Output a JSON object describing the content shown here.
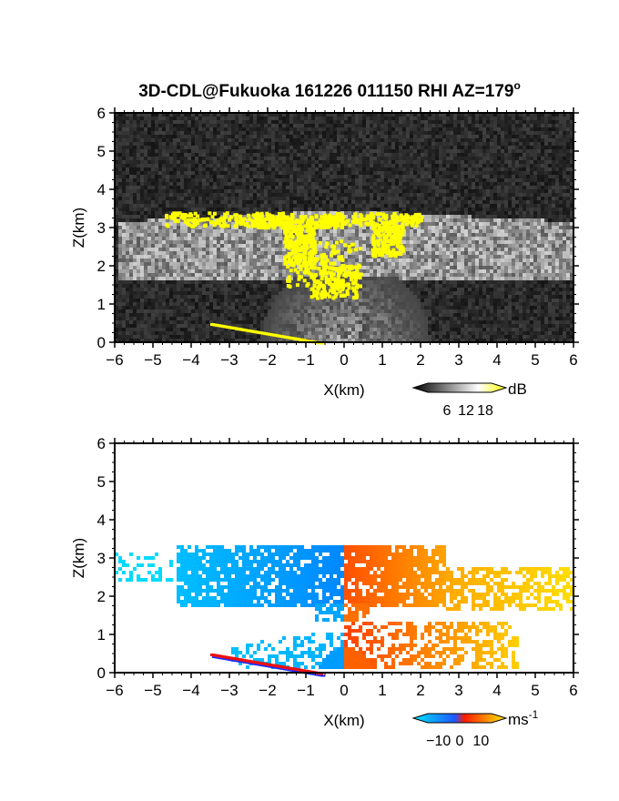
{
  "title": "3D-CDL@Fukuoka 161226 011150 RHI AZ=179",
  "title_degree": "o",
  "chart_data": [
    {
      "type": "heatmap",
      "panel": "reflectivity",
      "xlabel": "X(km)",
      "ylabel": "Z(km)",
      "xlim": [
        -6,
        6
      ],
      "ylim": [
        0,
        6
      ],
      "xticks": [
        "-6",
        "-5",
        "-4",
        "-3",
        "-2",
        "-1",
        "0",
        "1",
        "2",
        "3",
        "4",
        "5",
        "6"
      ],
      "yticks": [
        "0",
        "1",
        "2",
        "3",
        "4",
        "5",
        "6"
      ],
      "colorbar": {
        "unit": "dB",
        "ticks": [
          "6",
          "12",
          "18"
        ],
        "ticks_values": [
          6,
          12,
          18
        ],
        "range": [
          0,
          20
        ],
        "colors": [
          "#000000",
          "#ffffff",
          "#ffff00"
        ]
      },
      "features": [
        {
          "name": "cloud layer",
          "x_range": [
            -6,
            6
          ],
          "z_range": [
            1.8,
            3.6
          ],
          "value_db": 10
        },
        {
          "name": "high echo band",
          "x_range": [
            -3,
            1.7
          ],
          "z_range": [
            3.0,
            3.4
          ],
          "value_db": 18
        },
        {
          "name": "high echo core",
          "x_range": [
            -1.2,
            0.8
          ],
          "z_range": [
            1.4,
            2.4
          ],
          "value_db": 18
        },
        {
          "name": "ground clutter",
          "x_range": [
            -3.5,
            -0.6
          ],
          "z_range": [
            0.0,
            0.5
          ],
          "value_db": 18
        }
      ]
    },
    {
      "type": "heatmap",
      "panel": "doppler_velocity",
      "xlabel": "X(km)",
      "ylabel": "Z(km)",
      "xlim": [
        -6,
        6
      ],
      "ylim": [
        0,
        6
      ],
      "xticks": [
        "-6",
        "-5",
        "-4",
        "-3",
        "-2",
        "-1",
        "0",
        "1",
        "2",
        "3",
        "4",
        "5",
        "6"
      ],
      "yticks": [
        "0",
        "1",
        "2",
        "3",
        "4",
        "5",
        "6"
      ],
      "colorbar": {
        "unit": "ms",
        "unit_exp": "-1",
        "ticks": [
          "-10",
          "0",
          "10"
        ],
        "ticks_values": [
          -10,
          0,
          10
        ],
        "range": [
          -15,
          15
        ],
        "colors": [
          "#00e5ff",
          "#1f57ff",
          "#ff1a00",
          "#ffee00"
        ]
      },
      "features": [
        {
          "name": "receding flow",
          "x_range": [
            -6,
            0
          ],
          "z_range": [
            0.0,
            3.4
          ],
          "velocity_ms": -8
        },
        {
          "name": "approaching flow",
          "x_range": [
            0,
            6
          ],
          "z_range": [
            0.0,
            3.4
          ],
          "velocity_ms": 8
        }
      ]
    }
  ]
}
